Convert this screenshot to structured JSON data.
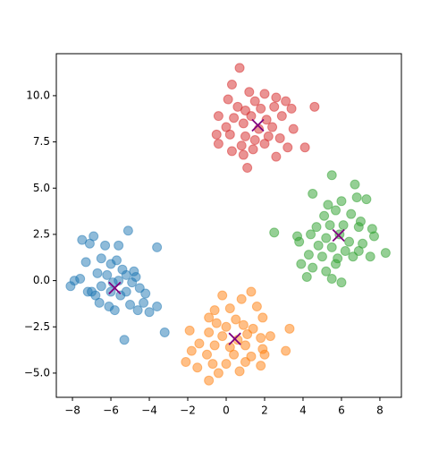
{
  "chart_data": {
    "type": "scatter",
    "xlim": [
      -8.84,
      9.12
    ],
    "ylim": [
      -6.31,
      12.27
    ],
    "xticks": [
      {
        "value": -8,
        "label": "−8"
      },
      {
        "value": -6,
        "label": "−6"
      },
      {
        "value": -4,
        "label": "−4"
      },
      {
        "value": -2,
        "label": "−2"
      },
      0,
      2,
      4,
      6,
      8
    ],
    "yticks": [
      {
        "value": -5,
        "label": "−5.0"
      },
      {
        "value": -2.5,
        "label": "−2.5"
      },
      {
        "value": 0,
        "label": "0.0"
      },
      2.5,
      {
        "value": 5,
        "label": "5.0"
      },
      7.5,
      {
        "value": 10,
        "label": "10.0"
      }
    ],
    "series": [
      {
        "color": "#1f77b4",
        "opacity": 0.5,
        "marker": "circle",
        "x": [
          -7.5,
          -6.9,
          -7.1,
          -6.3,
          -5.6,
          -5.1,
          -3.6,
          -6.5,
          -7.3,
          -6.0,
          -5.7,
          -5.4,
          -4.8,
          -6.7,
          -7.9,
          -8.1,
          -7.6,
          -7.2,
          -6.8,
          -6.5,
          -6.2,
          -5.9,
          -5.6,
          -5.2,
          -4.9,
          -4.5,
          -4.2,
          -3.6,
          -3.2,
          -5.3,
          -5.8,
          -6.1,
          -6.6,
          -5.0,
          -4.6,
          -4.3,
          -5.5,
          -6.0,
          -7.0,
          -4.0,
          -5.2,
          -4.7
        ],
        "values": [
          2.2,
          2.4,
          2.0,
          1.9,
          1.9,
          2.7,
          1.8,
          1.2,
          1.0,
          0.9,
          1.1,
          0.6,
          0.5,
          0.4,
          0.0,
          -0.3,
          0.1,
          -0.6,
          -0.8,
          -0.3,
          0.3,
          -0.1,
          0.0,
          0.3,
          -0.1,
          -0.4,
          -0.7,
          -1.4,
          -2.8,
          -3.2,
          -1.6,
          -1.4,
          -1.2,
          -1.3,
          -1.6,
          -1.2,
          -0.8,
          -0.6,
          -0.6,
          -1.7,
          -0.6,
          0.2
        ]
      },
      {
        "color": "#ff7f0e",
        "opacity": 0.5,
        "marker": "circle",
        "x": [
          1.3,
          -0.2,
          0.8,
          1.6,
          -0.6,
          0.2,
          -0.9,
          0.5,
          1.9,
          0.0,
          0.9,
          -0.5,
          1.4,
          3.3,
          -1.9,
          -0.9,
          -0.2,
          0.6,
          1.1,
          1.8,
          2.3,
          -1.4,
          -0.6,
          0.2,
          1.0,
          1.9,
          3.1,
          -1.8,
          -1.0,
          0.4,
          1.3,
          2.0,
          -2.1,
          -0.7,
          0.0,
          1.0,
          1.8,
          -0.4,
          -0.9,
          0.7,
          -1.5
        ],
        "values": [
          -0.6,
          -0.8,
          -1.0,
          -1.4,
          -1.6,
          -1.5,
          -2.0,
          -2.1,
          -2.0,
          -2.5,
          -2.4,
          -2.3,
          -2.6,
          -2.6,
          -2.7,
          -2.8,
          -3.0,
          -3.2,
          -2.9,
          -3.1,
          -3.0,
          -3.4,
          -3.5,
          -3.6,
          -3.5,
          -3.7,
          -3.8,
          -3.8,
          -4.0,
          -4.0,
          -4.1,
          -4.0,
          -4.4,
          -4.5,
          -4.5,
          -4.4,
          -4.6,
          -5.0,
          -5.4,
          -4.9,
          -4.7
        ]
      },
      {
        "color": "#2ca02c",
        "opacity": 0.5,
        "marker": "circle",
        "x": [
          5.5,
          6.7,
          4.5,
          5.3,
          6.0,
          6.8,
          7.3,
          5.7,
          6.5,
          7.0,
          5.1,
          4.7,
          5.4,
          6.1,
          6.9,
          7.6,
          2.5,
          3.7,
          4.4,
          5.2,
          5.9,
          6.4,
          7.1,
          7.7,
          3.8,
          4.8,
          5.5,
          6.2,
          6.9,
          8.3,
          4.3,
          5.0,
          5.8,
          6.6,
          7.5,
          3.9,
          4.5,
          5.2,
          5.7,
          4.2,
          5.5,
          6.0
        ],
        "values": [
          5.7,
          5.2,
          4.7,
          4.1,
          4.3,
          4.5,
          4.4,
          3.8,
          3.6,
          3.2,
          3.5,
          2.9,
          3.0,
          3.0,
          2.9,
          2.8,
          2.6,
          2.4,
          2.5,
          2.3,
          2.5,
          2.1,
          2.0,
          2.4,
          2.1,
          1.9,
          1.8,
          1.6,
          1.6,
          1.5,
          1.4,
          1.3,
          1.2,
          1.3,
          1.3,
          0.9,
          0.7,
          0.5,
          0.9,
          0.2,
          0.1,
          -0.1
        ]
      },
      {
        "color": "#d62728",
        "opacity": 0.5,
        "marker": "circle",
        "x": [
          0.7,
          0.3,
          1.2,
          2.0,
          0.1,
          1.5,
          2.6,
          3.1,
          0.6,
          1.0,
          1.8,
          2.5,
          3.4,
          4.6,
          -0.4,
          0.4,
          1.3,
          2.1,
          2.9,
          0.0,
          0.9,
          1.7,
          2.4,
          3.5,
          -0.5,
          0.2,
          1.0,
          1.5,
          2.2,
          2.8,
          -0.4,
          0.8,
          1.4,
          2.0,
          3.2,
          4.1,
          0.9,
          2.6,
          1.1,
          0.3
        ],
        "values": [
          11.5,
          10.6,
          10.2,
          10.1,
          9.8,
          9.7,
          9.9,
          9.7,
          9.4,
          9.2,
          9.3,
          9.4,
          9.3,
          9.4,
          8.9,
          8.8,
          8.9,
          8.7,
          8.9,
          8.3,
          8.5,
          8.2,
          8.3,
          8.2,
          7.9,
          7.9,
          7.8,
          7.6,
          7.8,
          7.7,
          7.4,
          7.3,
          7.1,
          7.4,
          7.2,
          7.2,
          6.8,
          6.7,
          6.1,
          7.0
        ]
      },
      {
        "color": "#800080",
        "opacity": 1,
        "marker": "x",
        "x": [
          -5.8,
          0.45,
          5.85,
          1.65
        ],
        "values": [
          -0.4,
          -3.15,
          2.45,
          8.4
        ]
      }
    ]
  }
}
